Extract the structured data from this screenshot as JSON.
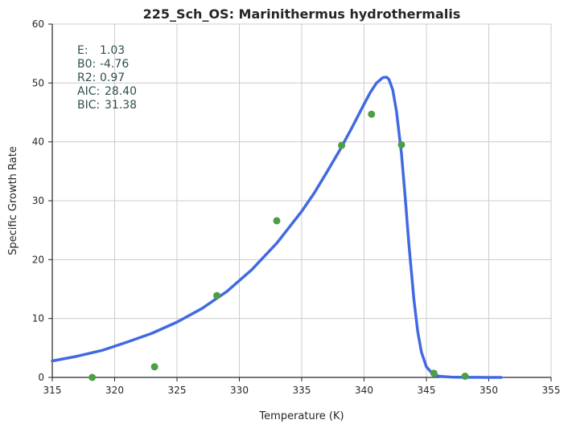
{
  "chart_data": {
    "type": "scatter",
    "title": "225_Sch_OS: Marinithermus hydrothermalis",
    "xlabel": "Temperature (K)",
    "ylabel": "Specific Growth Rate",
    "xlim": [
      315,
      355
    ],
    "ylim": [
      0,
      60
    ],
    "x_ticks": [
      315,
      320,
      325,
      330,
      335,
      340,
      345,
      350,
      355
    ],
    "y_ticks": [
      0,
      10,
      20,
      30,
      40,
      50,
      60
    ],
    "grid": true,
    "stats": [
      {
        "key": "E:",
        "value": "1.03"
      },
      {
        "key": "B0:",
        "value": "-4.76"
      },
      {
        "key": "R2:",
        "value": "0.97"
      },
      {
        "key": "AIC:",
        "value": "28.40"
      },
      {
        "key": "BIC:",
        "value": "31.38"
      }
    ],
    "series": [
      {
        "type": "scatter",
        "color": "#4c9e47",
        "x": [
          318.2,
          323.2,
          328.2,
          333.0,
          338.2,
          340.6,
          343.0,
          345.6,
          348.1
        ],
        "y": [
          0.0,
          1.8,
          13.9,
          26.6,
          39.4,
          44.7,
          39.5,
          0.7,
          0.2
        ]
      },
      {
        "type": "line",
        "color": "#4169e1",
        "x": [
          315,
          317,
          319,
          321,
          323,
          325,
          327,
          329,
          331,
          333,
          335,
          336,
          337,
          338,
          339,
          340,
          340.5,
          341,
          341.5,
          341.8,
          342,
          342.3,
          342.6,
          343,
          343.3,
          343.6,
          344,
          344.3,
          344.6,
          345,
          345.5,
          346,
          347,
          348,
          349,
          350,
          351
        ],
        "y": [
          2.8,
          3.6,
          4.6,
          6.0,
          7.5,
          9.4,
          11.7,
          14.6,
          18.3,
          22.8,
          28.2,
          31.3,
          34.8,
          38.4,
          42.3,
          46.4,
          48.4,
          50.0,
          50.9,
          51.0,
          50.6,
          48.8,
          45.2,
          38.0,
          30.5,
          22.5,
          13.2,
          7.8,
          4.3,
          1.8,
          0.6,
          0.2,
          0.05,
          0.02,
          0.01,
          0.0,
          0.0
        ]
      }
    ]
  }
}
